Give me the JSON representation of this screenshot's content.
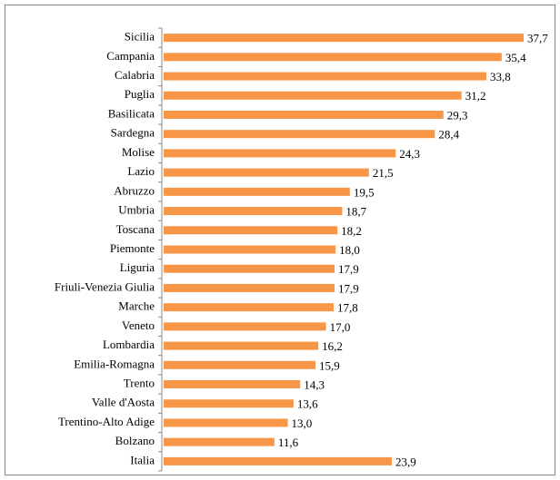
{
  "chart_data": {
    "type": "bar",
    "orientation": "horizontal",
    "categories": [
      "Sicilia",
      "Campania",
      "Calabria",
      "Puglia",
      "Basilicata",
      "Sardegna",
      "Molise",
      "Lazio",
      "Abruzzo",
      "Umbria",
      "Toscana",
      "Piemonte",
      "Liguria",
      "Friuli-Venezia Giulia",
      "Marche",
      "Veneto",
      "Lombardia",
      "Emilia-Romagna",
      "Trento",
      "Valle d'Aosta",
      "Trentino-Alto Adige",
      "Bolzano",
      "Italia"
    ],
    "values": [
      37.7,
      35.4,
      33.8,
      31.2,
      29.3,
      28.4,
      24.3,
      21.5,
      19.5,
      18.7,
      18.2,
      18.0,
      17.9,
      17.9,
      17.8,
      17.0,
      16.2,
      15.9,
      14.3,
      13.6,
      13.0,
      11.6,
      23.9
    ],
    "value_labels": [
      "37,7",
      "35,4",
      "33,8",
      "31,2",
      "29,3",
      "28,4",
      "24,3",
      "21,5",
      "19,5",
      "18,7",
      "18,2",
      "18,0",
      "17,9",
      "17,9",
      "17,8",
      "17,0",
      "16,2",
      "15,9",
      "14,3",
      "13,6",
      "13,0",
      "11,6",
      "23,9"
    ],
    "color": "#f79646"
  }
}
